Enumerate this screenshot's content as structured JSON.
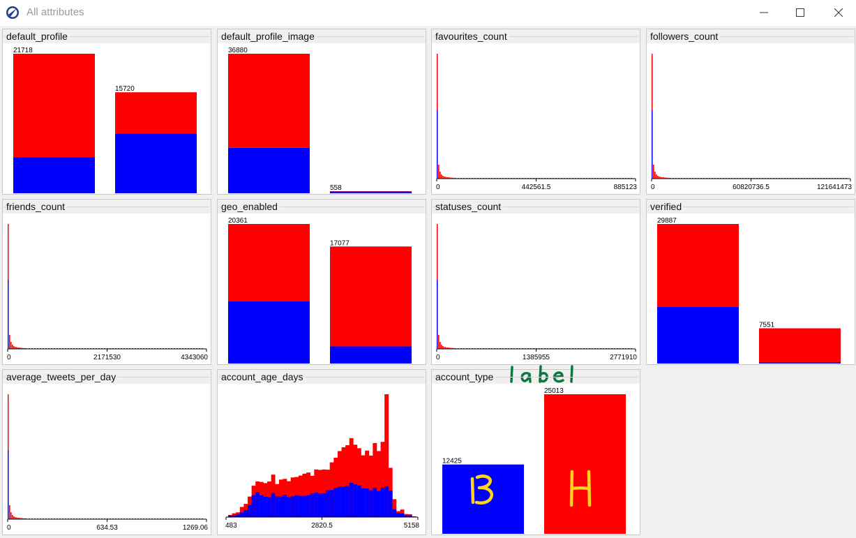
{
  "window": {
    "title": "All attributes",
    "app_icon": "globe-icon",
    "controls": [
      "minimize-icon",
      "maximize-icon",
      "close-icon"
    ]
  },
  "colors": {
    "class_a": "#ff0000",
    "class_b": "#0000ff",
    "annotation_label": "#0a7a3c",
    "annotation_letters": "#ffd21e"
  },
  "annotations": {
    "label": "label",
    "bar_b": "B",
    "bar_h": "H"
  },
  "chart_data": [
    {
      "name": "default_profile",
      "type": "bar",
      "title": "default_profile",
      "bars": [
        {
          "total": 21718,
          "blue": 5600
        },
        {
          "total": 15720,
          "blue": 9300
        }
      ],
      "labels": [
        "21718",
        "15720"
      ]
    },
    {
      "name": "default_profile_image",
      "type": "bar",
      "title": "default_profile_image",
      "bars": [
        {
          "total": 36880,
          "blue": 12000
        },
        {
          "total": 558,
          "blue": 450
        }
      ],
      "labels": [
        "36880",
        "558"
      ]
    },
    {
      "name": "favourites_count",
      "type": "histogram",
      "title": "favourites_count",
      "ticks": [
        "0",
        "442561.5",
        "885123"
      ]
    },
    {
      "name": "followers_count",
      "type": "histogram",
      "title": "followers_count",
      "ticks": [
        "0",
        "60820736.5",
        "121641473"
      ]
    },
    {
      "name": "friends_count",
      "type": "histogram",
      "title": "friends_count",
      "ticks": [
        "0",
        "2171530",
        "4343060"
      ]
    },
    {
      "name": "geo_enabled",
      "type": "bar",
      "title": "geo_enabled",
      "bars": [
        {
          "total": 20361,
          "blue": 9100
        },
        {
          "total": 17077,
          "blue": 2500
        }
      ],
      "labels": [
        "20361",
        "17077"
      ]
    },
    {
      "name": "statuses_count",
      "type": "histogram",
      "title": "statuses_count",
      "ticks": [
        "0",
        "1385955",
        "2771910"
      ]
    },
    {
      "name": "verified",
      "type": "bar",
      "title": "verified",
      "bars": [
        {
          "total": 29887,
          "blue": 12100
        },
        {
          "total": 7551,
          "blue": 300
        }
      ],
      "labels": [
        "29887",
        "7551"
      ]
    },
    {
      "name": "average_tweets_per_day",
      "type": "histogram",
      "title": "average_tweets_per_day",
      "ticks": [
        "0",
        "634.53",
        "1269.06"
      ]
    },
    {
      "name": "account_age_days",
      "type": "histogram",
      "title": "account_age_days",
      "ticks": [
        "483",
        "2820.5",
        "5158"
      ],
      "red": [
        0.9,
        1.6,
        2.0,
        4.3,
        5.6,
        8.7,
        13.3,
        15.1,
        14.9,
        14.4,
        15.1,
        18.0,
        14.0,
        15.9,
        16.2,
        15.2,
        16.8,
        17.0,
        17.6,
        18.4,
        18.9,
        17.5,
        20.2,
        20.0,
        20.2,
        20.1,
        23.2,
        25.2,
        28.0,
        29.6,
        30.5,
        33.5,
        30.7,
        29.2,
        26.2,
        28.2,
        26.1,
        31.4,
        28.0,
        31.9,
        52.1,
        20.9,
        7.6,
        2.5,
        3.2,
        1.3,
        1.2,
        0.3
      ],
      "blue": [
        0.6,
        0.7,
        1.2,
        2.0,
        3.0,
        5.2,
        9.3,
        10.6,
        9.2,
        8.6,
        8.4,
        10.2,
        8.8,
        8.7,
        9.5,
        8.5,
        8.8,
        9.2,
        9.0,
        9.0,
        9.3,
        10.1,
        10.4,
        10.1,
        10.1,
        11.4,
        11.5,
        12.4,
        12.9,
        12.8,
        13.2,
        14.5,
        13.9,
        13.4,
        12.2,
        12.1,
        11.4,
        12.4,
        11.1,
        12.4,
        13.0,
        11.3,
        3.3,
        1.7,
        1.5,
        0.7,
        0.7,
        0.2
      ]
    },
    {
      "name": "account_type",
      "type": "bar",
      "title": "account_type",
      "bars": [
        {
          "total": 12425,
          "blue": 12425
        },
        {
          "total": 25013,
          "blue": 0
        }
      ],
      "labels": [
        "12425",
        "25013"
      ]
    }
  ]
}
